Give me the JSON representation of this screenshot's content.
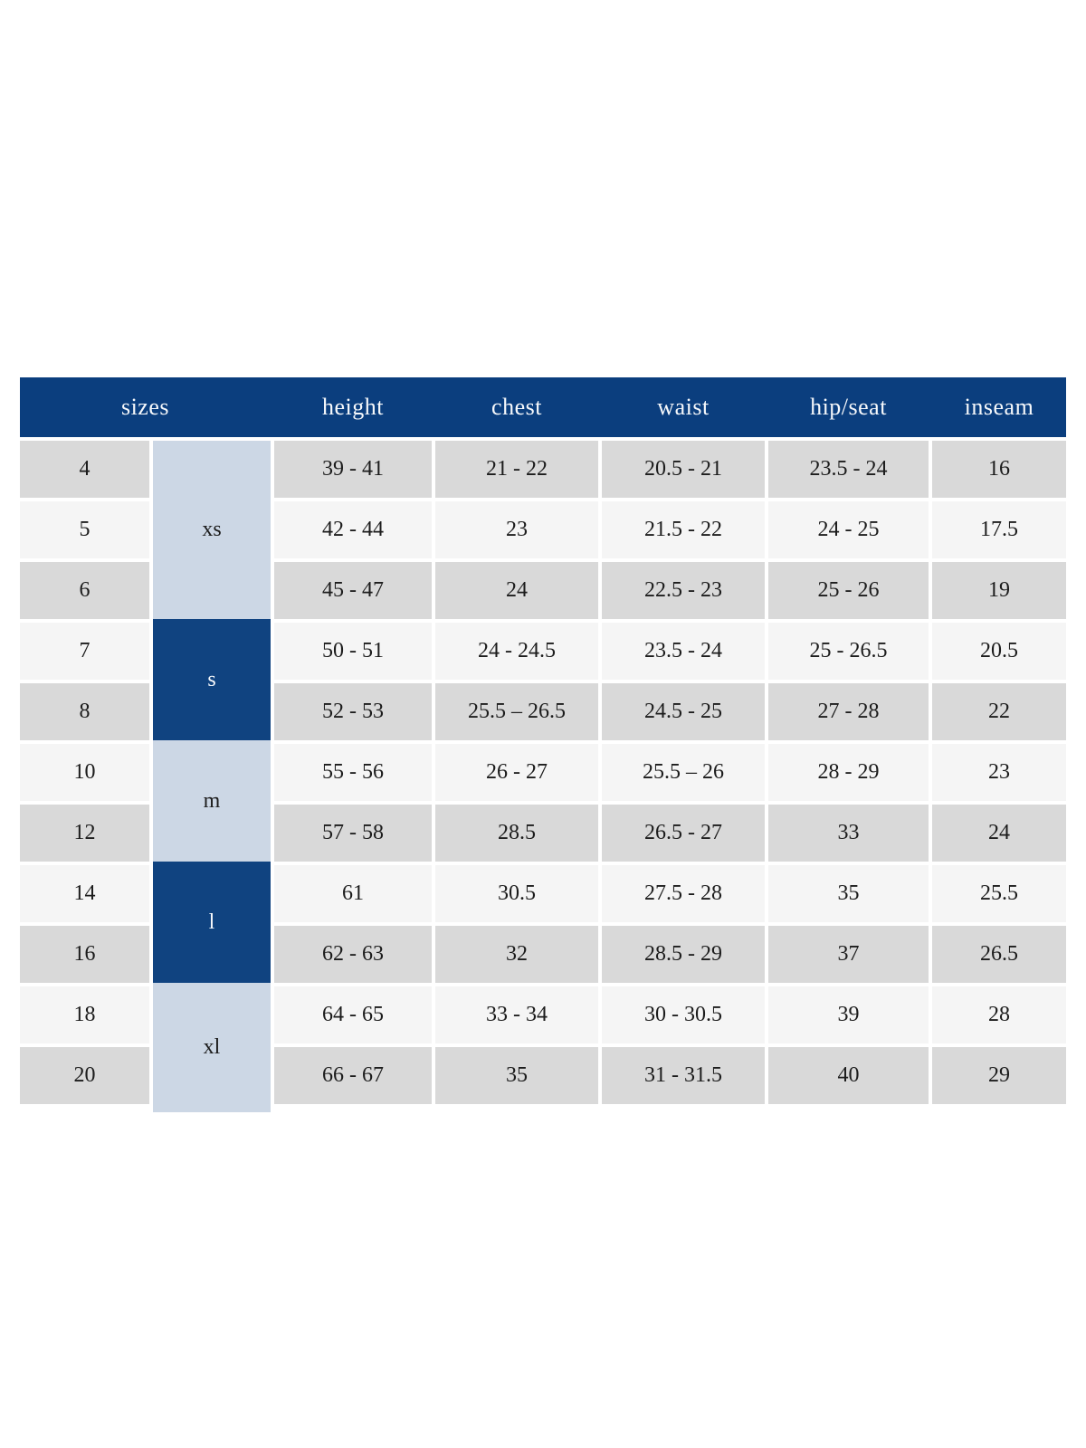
{
  "colors": {
    "header_bg": "#0b3e7e",
    "group_dark_bg": "#104380",
    "group_light_bg": "#ccd7e5",
    "row_gray": "#d9d9d9",
    "row_light": "#f5f5f5",
    "text_dark": "#1c1c1c",
    "text_light": "#f6f8fb",
    "gap_white": "#ffffff"
  },
  "chart_data": {
    "type": "table",
    "title": "",
    "columns": [
      "sizes",
      "height",
      "chest",
      "waist",
      "hip/seat",
      "inseam"
    ],
    "size_groups": [
      {
        "label": "xs",
        "tone": "light",
        "row_indexes": [
          0,
          1,
          2
        ]
      },
      {
        "label": "s",
        "tone": "dark",
        "row_indexes": [
          3,
          4
        ]
      },
      {
        "label": "m",
        "tone": "light",
        "row_indexes": [
          5,
          6
        ]
      },
      {
        "label": "l",
        "tone": "dark",
        "row_indexes": [
          7,
          8
        ]
      },
      {
        "label": "xl",
        "tone": "light",
        "row_indexes": [
          9,
          10
        ]
      }
    ],
    "rows": [
      {
        "size": "4",
        "height": "39 - 41",
        "chest": "21 - 22",
        "waist": "20.5 - 21",
        "hip_seat": "23.5 - 24",
        "inseam": "16"
      },
      {
        "size": "5",
        "height": "42 - 44",
        "chest": "23",
        "waist": "21.5 - 22",
        "hip_seat": "24 - 25",
        "inseam": "17.5"
      },
      {
        "size": "6",
        "height": "45 - 47",
        "chest": "24",
        "waist": "22.5 - 23",
        "hip_seat": "25 - 26",
        "inseam": "19"
      },
      {
        "size": "7",
        "height": "50 - 51",
        "chest": "24 - 24.5",
        "waist": "23.5 - 24",
        "hip_seat": "25 - 26.5",
        "inseam": "20.5"
      },
      {
        "size": "8",
        "height": "52 - 53",
        "chest": "25.5 – 26.5",
        "waist": "24.5 - 25",
        "hip_seat": "27 - 28",
        "inseam": "22"
      },
      {
        "size": "10",
        "height": "55 - 56",
        "chest": "26 - 27",
        "waist": "25.5 – 26",
        "hip_seat": "28 - 29",
        "inseam": "23"
      },
      {
        "size": "12",
        "height": "57 - 58",
        "chest": "28.5",
        "waist": "26.5 - 27",
        "hip_seat": "33",
        "inseam": "24"
      },
      {
        "size": "14",
        "height": "61",
        "chest": "30.5",
        "waist": "27.5 - 28",
        "hip_seat": "35",
        "inseam": "25.5"
      },
      {
        "size": "16",
        "height": "62 - 63",
        "chest": "32",
        "waist": "28.5 - 29",
        "hip_seat": "37",
        "inseam": "26.5"
      },
      {
        "size": "18",
        "height": "64 - 65",
        "chest": "33 - 34",
        "waist": "30 - 30.5",
        "hip_seat": "39",
        "inseam": "28"
      },
      {
        "size": "20",
        "height": "66 - 67",
        "chest": "35",
        "waist": "31 - 31.5",
        "hip_seat": "40",
        "inseam": "29"
      }
    ]
  }
}
